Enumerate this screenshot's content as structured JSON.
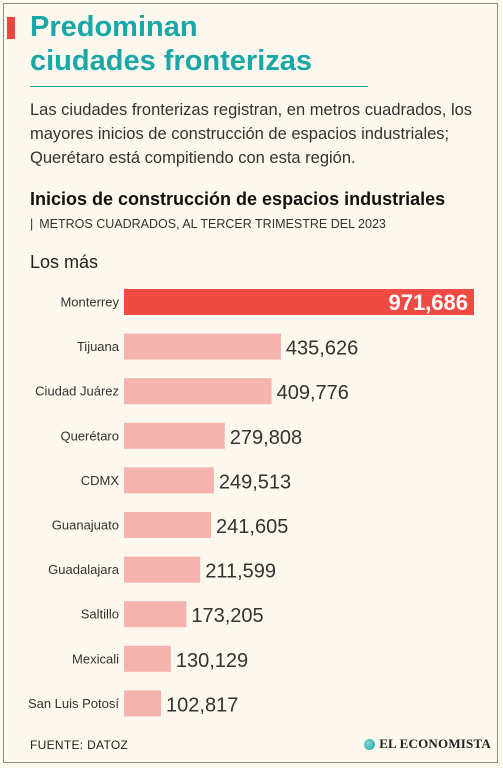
{
  "headline": {
    "line1": "Predominan",
    "line2": "ciudades fronterizas"
  },
  "lede": "Las ciudades fronterizas registran, en metros cuadrados, los mayores inicios de construcción de espacios industriales; Querétaro está compitiendo con esta región.",
  "section_label": "Los más",
  "footer": {
    "source": "FUENTE: DATOZ",
    "brand": "EL ECONOMISTA"
  },
  "colors": {
    "highlight": "#ef4a43",
    "bar": "#f5b3ad",
    "headline": "#19a7a7",
    "background": "#fdf8ee"
  },
  "chart_data": {
    "type": "bar",
    "orientation": "horizontal",
    "title": "Inicios de construcción de espacios industriales",
    "subtitle": "METROS CUADRADOS, AL TERCER TRIMESTRE DEL 2023",
    "categories": [
      "Monterrey",
      "Tijuana",
      "Ciudad Juárez",
      "Querétaro",
      "CDMX",
      "Guanajuato",
      "Guadalajara",
      "Saltillo",
      "Mexicali",
      "San Luis Potosí"
    ],
    "values": [
      971686,
      435626,
      409776,
      279808,
      249513,
      241605,
      211599,
      173205,
      130129,
      102817
    ],
    "value_labels": [
      "971,686",
      "435,626",
      "409,776",
      "279,808",
      "249,513",
      "241,605",
      "211,599",
      "173,205",
      "130,129",
      "102,817"
    ],
    "highlighted": "Monterrey",
    "xlim": [
      0,
      971686
    ],
    "grid": false
  }
}
